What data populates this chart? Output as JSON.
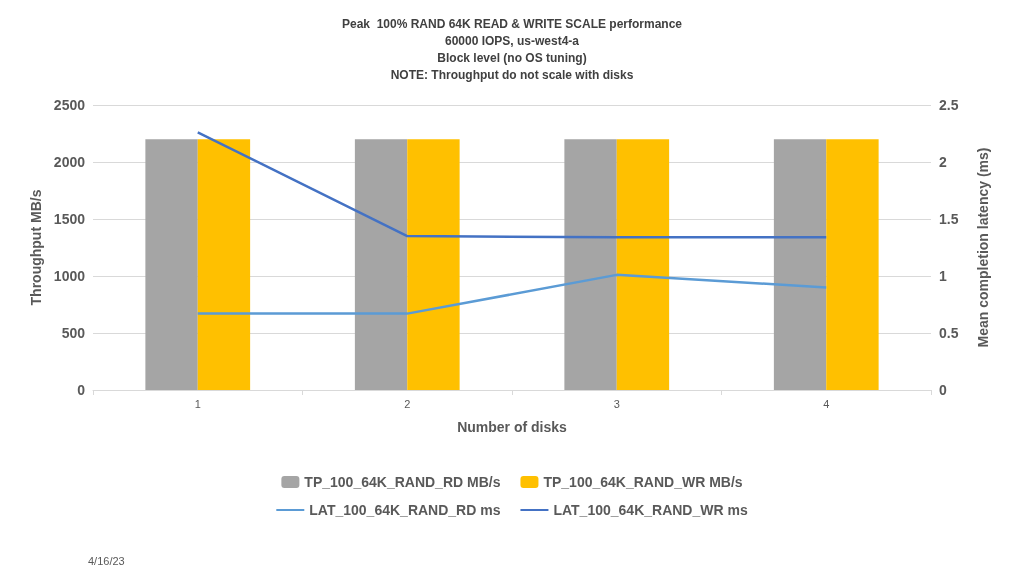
{
  "chart_data": {
    "type": "bar",
    "title": "Peak  100% RAND 64K READ & WRITE SCALE performance",
    "subtitle": "60000 IOPS, us-west4-a\nBlock level (no OS tuning)\nNOTE: Throughput do not scale with disks",
    "xlabel": "Number of disks",
    "ylabel": "Throughput MB/s",
    "y2label": "Mean completion latency (ms)",
    "categories": [
      "1",
      "2",
      "3",
      "4"
    ],
    "series": [
      {
        "name": "TP_100_64K_RAND_RD MB/s",
        "color": "#a5a5a5",
        "values": [
          2200,
          2200,
          2200,
          2200
        ]
      },
      {
        "name": "TP_100_64K_RAND_WR MB/s",
        "color": "#ffc000",
        "values": [
          2200,
          2200,
          2200,
          2200
        ]
      },
      {
        "name": "LAT_100_64K_RAND_RD ms",
        "type": "line",
        "axis": "y2",
        "color": "#5b9bd5",
        "values": [
          0.67,
          0.67,
          1.01,
          0.9
        ]
      },
      {
        "name": "LAT_100_64K_RAND_WR ms",
        "type": "line",
        "axis": "y2",
        "color": "#4472c4",
        "values": [
          2.26,
          1.35,
          1.34,
          1.34
        ]
      }
    ],
    "ylim": [
      0,
      2500
    ],
    "yticks": [
      0,
      500,
      1000,
      1500,
      2000,
      2500
    ],
    "y2lim": [
      0,
      2.5
    ],
    "y2ticks": [
      0,
      0.5,
      1,
      1.5,
      2,
      2.5
    ],
    "grid": "y",
    "legend": "bottom",
    "marker": "none",
    "annotations": [
      "4/16/23"
    ]
  }
}
